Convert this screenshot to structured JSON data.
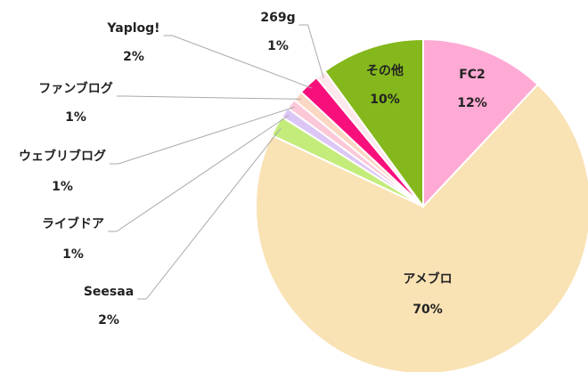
{
  "chart_data": {
    "type": "pie",
    "categories": [
      "FC2",
      "アメブロ",
      "Seesaa",
      "ライブドア",
      "ウェブリブログ",
      "ファンブログ",
      "Yaplog!",
      "269g",
      "その他"
    ],
    "values": [
      12,
      70,
      2,
      1,
      1,
      1,
      2,
      1,
      10
    ],
    "value_labels": [
      "12%",
      "70%",
      "2%",
      "1%",
      "1%",
      "1%",
      "2%",
      "1%",
      "10%"
    ],
    "colors": [
      "#ffaad4",
      "#f9e2b4",
      "#c4ec7a",
      "#dcc6f5",
      "#fbc8d8",
      "#fcd7c4",
      "#f7107c",
      "#fde8ee",
      "#84b81c"
    ]
  }
}
